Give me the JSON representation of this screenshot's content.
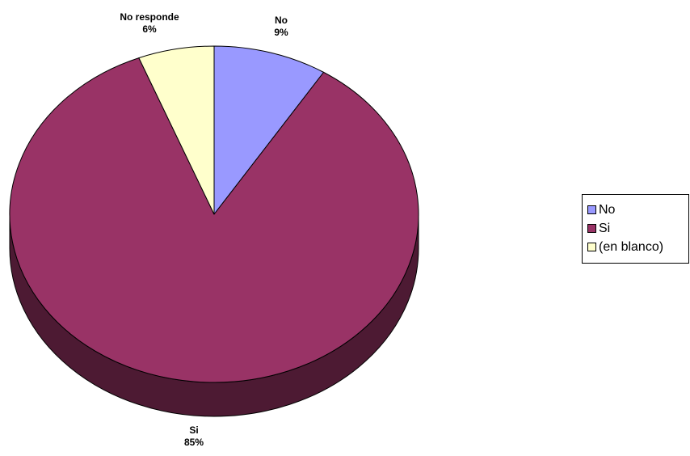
{
  "chart_data": {
    "type": "pie",
    "style": "3d",
    "slices": [
      {
        "category": "No",
        "data_label": "No",
        "percent": 9,
        "percent_label": "9%",
        "color": "#9999ff",
        "side_color": "#4d4d80"
      },
      {
        "category": "Si",
        "data_label": "Si",
        "percent": 85,
        "percent_label": "85%",
        "color": "#993366",
        "side_color": "#4d1a33"
      },
      {
        "category": "(en blanco)",
        "data_label": "No responde",
        "percent": 6,
        "percent_label": "6%",
        "color": "#ffffcc",
        "side_color": "#808066"
      }
    ],
    "legend": {
      "placement": "right",
      "entries": [
        "No",
        "Si",
        "(en blanco)"
      ]
    }
  }
}
